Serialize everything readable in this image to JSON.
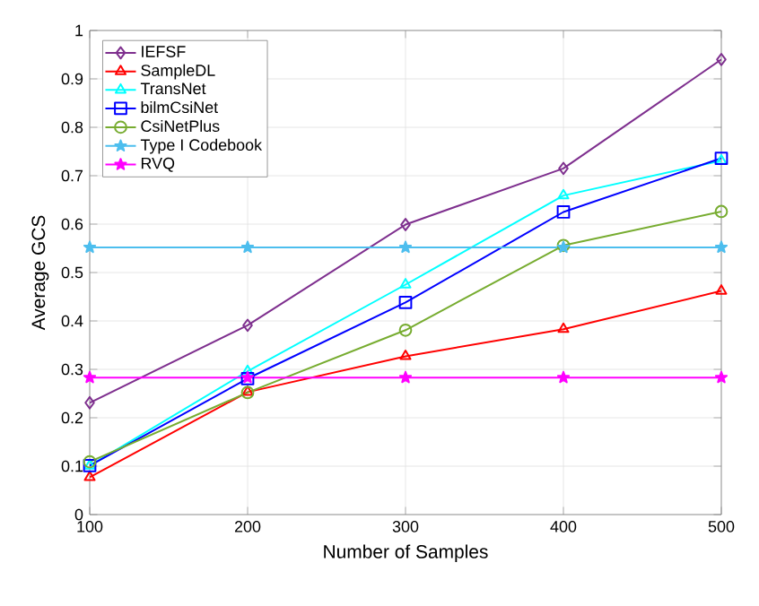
{
  "chart_data": {
    "type": "line",
    "xlabel": "Number of Samples",
    "ylabel": "Average GCS",
    "x": [
      100,
      200,
      300,
      400,
      500
    ],
    "xlim": [
      100,
      500
    ],
    "xticks": [
      100,
      200,
      300,
      400,
      500
    ],
    "ylim": [
      0,
      1
    ],
    "yticks": [
      0,
      0.1,
      0.2,
      0.3,
      0.4,
      0.5,
      0.6,
      0.7,
      0.8,
      0.9,
      1
    ],
    "grid": true,
    "legend": "top left",
    "line_style": "solid",
    "series": [
      {
        "name": "IEFSF",
        "color": "#7e2f8e",
        "marker": "diamond",
        "values": [
          0.231,
          0.391,
          0.599,
          0.715,
          0.94
        ]
      },
      {
        "name": "SampleDL",
        "color": "#ff0000",
        "marker": "triangle",
        "values": [
          0.077,
          0.253,
          0.327,
          0.383,
          0.462
        ]
      },
      {
        "name": "TransNet",
        "color": "#00ffff",
        "marker": "triangle",
        "values": [
          0.101,
          0.296,
          0.475,
          0.659,
          0.731
        ]
      },
      {
        "name": "bilmCsiNet",
        "color": "#0000ff",
        "marker": "square",
        "values": [
          0.101,
          0.281,
          0.438,
          0.625,
          0.736
        ]
      },
      {
        "name": "CsiNetPlus",
        "color": "#77ac30",
        "marker": "circle",
        "values": [
          0.109,
          0.252,
          0.381,
          0.556,
          0.626
        ]
      },
      {
        "name": "Type I Codebook",
        "color": "#4dbeee",
        "marker": "star",
        "values": [
          0.552,
          0.552,
          0.552,
          0.552,
          0.552
        ]
      },
      {
        "name": "RVQ",
        "color": "#ff00ff",
        "marker": "star",
        "values": [
          0.283,
          0.283,
          0.283,
          0.283,
          0.283
        ]
      }
    ]
  }
}
